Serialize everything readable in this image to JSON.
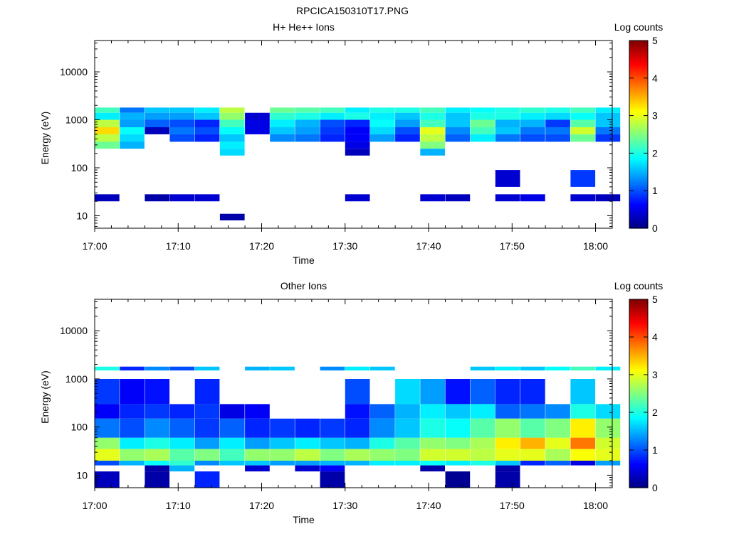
{
  "title": "RPCICA150310T17.PNG",
  "colors": {
    "colormap": [
      "#00007f",
      "#0000ff",
      "#0080ff",
      "#00ffff",
      "#80ff80",
      "#ffff00",
      "#ff8000",
      "#ff0000",
      "#7f0000"
    ]
  },
  "chart_data": [
    {
      "type": "heatmap",
      "title": "H+ He++ Ions",
      "xlabel": "Time",
      "ylabel": "Energy (eV)",
      "colorbar_label": "Log counts",
      "colorbar_ticks": [
        "0",
        "1",
        "2",
        "3",
        "4",
        "5"
      ],
      "x_ticks": [
        "17:00",
        "17:10",
        "17:20",
        "17:30",
        "17:40",
        "17:50",
        "18:00"
      ],
      "y_ticks": [
        "10",
        "100",
        "1000",
        "10000"
      ],
      "xlim": [
        "17:00",
        "18:02"
      ],
      "ylim": [
        5.5,
        45000
      ],
      "yscale": "log",
      "zlim": [
        0,
        5
      ],
      "time_bins": [
        "17:00",
        "17:03",
        "17:06",
        "17:09",
        "17:12",
        "17:15",
        "17:18",
        "17:21",
        "17:24",
        "17:27",
        "17:30",
        "17:33",
        "17:36",
        "17:39",
        "17:42",
        "17:45",
        "17:48",
        "17:51",
        "17:54",
        "17:57",
        "18:00"
      ],
      "energy_bands": [
        {
          "e_low": 1400,
          "e_high": 1800,
          "counts": [
            2.2,
            1.2,
            1.6,
            1.6,
            1.8,
            2.8,
            null,
            2.4,
            2.3,
            2.2,
            1.8,
            2.0,
            2.0,
            2.2,
            1.8,
            1.9,
            2.0,
            2.1,
            2.0,
            2.2,
            1.8
          ]
        },
        {
          "e_low": 1000,
          "e_high": 1400,
          "counts": [
            1.8,
            1.5,
            1.4,
            1.4,
            1.6,
            2.6,
            0.4,
            2.1,
            2.0,
            1.8,
            2.0,
            1.8,
            1.6,
            2.0,
            1.6,
            2.0,
            2.0,
            1.8,
            1.7,
            1.9,
            1.6
          ]
        },
        {
          "e_low": 700,
          "e_high": 1000,
          "counts": [
            2.8,
            1.4,
            1.1,
            1.0,
            0.8,
            2.2,
            0.5,
            1.8,
            1.5,
            1.0,
            0.8,
            1.9,
            1.4,
            2.2,
            1.6,
            2.4,
            1.5,
            1.5,
            0.9,
            2.3,
            1.6
          ]
        },
        {
          "e_low": 500,
          "e_high": 700,
          "counts": [
            3.3,
            1.9,
            0.3,
            1.2,
            1.0,
            1.9,
            0.5,
            1.6,
            1.4,
            0.9,
            0.6,
            1.7,
            1.0,
            3.0,
            1.3,
            2.2,
            1.6,
            1.2,
            1.2,
            2.9,
            1.2
          ]
        },
        {
          "e_low": 350,
          "e_high": 500,
          "counts": [
            2.8,
            1.7,
            null,
            1.0,
            0.8,
            1.6,
            null,
            1.3,
            1.2,
            0.8,
            0.6,
            1.4,
            0.8,
            2.8,
            1.1,
            1.8,
            1.2,
            1.0,
            1.0,
            2.4,
            0.9
          ]
        },
        {
          "e_low": 250,
          "e_high": 350,
          "counts": [
            2.4,
            1.5,
            null,
            null,
            null,
            1.8,
            null,
            null,
            null,
            null,
            0.5,
            null,
            null,
            2.5,
            null,
            null,
            null,
            null,
            null,
            null,
            null
          ]
        },
        {
          "e_low": 180,
          "e_high": 250,
          "counts": [
            null,
            null,
            null,
            null,
            null,
            1.7,
            null,
            null,
            null,
            null,
            0.3,
            null,
            null,
            1.5,
            null,
            null,
            null,
            null,
            null,
            null,
            null
          ]
        },
        {
          "e_low": 40,
          "e_high": 90,
          "counts": [
            null,
            null,
            null,
            null,
            null,
            null,
            null,
            null,
            null,
            null,
            null,
            null,
            null,
            null,
            null,
            null,
            0.4,
            null,
            null,
            0.9,
            null
          ]
        },
        {
          "e_low": 20,
          "e_high": 28,
          "counts": [
            0.3,
            null,
            0.2,
            0.4,
            0.4,
            null,
            null,
            null,
            null,
            null,
            0.4,
            null,
            null,
            0.4,
            0.3,
            null,
            0.4,
            0.5,
            null,
            0.4,
            0.3
          ]
        },
        {
          "e_low": 8,
          "e_high": 11,
          "counts": [
            null,
            null,
            null,
            null,
            null,
            0.2,
            null,
            null,
            null,
            null,
            null,
            null,
            null,
            null,
            null,
            null,
            null,
            null,
            null,
            null,
            null
          ]
        }
      ]
    },
    {
      "type": "heatmap",
      "title": "Other Ions",
      "xlabel": "Time",
      "ylabel": "Energy (eV)",
      "colorbar_label": "Log counts",
      "colorbar_ticks": [
        "0",
        "1",
        "2",
        "3",
        "4",
        "5"
      ],
      "x_ticks": [
        "17:00",
        "17:10",
        "17:20",
        "17:30",
        "17:40",
        "17:50",
        "18:00"
      ],
      "y_ticks": [
        "10",
        "100",
        "1000",
        "10000"
      ],
      "xlim": [
        "17:00",
        "18:02"
      ],
      "ylim": [
        5.5,
        45000
      ],
      "yscale": "log",
      "zlim": [
        0,
        5
      ],
      "time_bins": [
        "17:00",
        "17:03",
        "17:06",
        "17:09",
        "17:12",
        "17:15",
        "17:18",
        "17:21",
        "17:24",
        "17:27",
        "17:30",
        "17:33",
        "17:36",
        "17:39",
        "17:42",
        "17:45",
        "17:48",
        "17:51",
        "17:54",
        "17:57",
        "18:00"
      ],
      "energy_bands": [
        {
          "e_low": 1500,
          "e_high": 1800,
          "counts": [
            2.0,
            0.8,
            1.3,
            1.0,
            1.6,
            null,
            1.5,
            1.6,
            null,
            1.3,
            1.8,
            1.6,
            null,
            null,
            null,
            1.6,
            1.8,
            1.6,
            1.9,
            2.2,
            1.8
          ]
        },
        {
          "e_low": 300,
          "e_high": 1000,
          "counts": [
            0.9,
            0.6,
            0.7,
            null,
            0.8,
            null,
            null,
            null,
            null,
            null,
            1.0,
            null,
            1.7,
            1.4,
            0.7,
            1.1,
            0.8,
            0.8,
            null,
            1.6,
            null
          ]
        },
        {
          "e_low": 150,
          "e_high": 300,
          "counts": [
            0.6,
            0.8,
            0.9,
            0.8,
            0.9,
            0.5,
            0.6,
            null,
            null,
            null,
            0.7,
            1.1,
            1.5,
            1.8,
            1.6,
            1.8,
            1.1,
            1.2,
            1.3,
            2.0,
            1.7
          ]
        },
        {
          "e_low": 60,
          "e_high": 150,
          "counts": [
            1.2,
            1.0,
            1.3,
            1.1,
            0.9,
            1.1,
            0.8,
            0.9,
            0.8,
            0.9,
            0.8,
            1.3,
            1.6,
            2.0,
            1.9,
            2.3,
            2.6,
            2.3,
            2.5,
            3.2,
            2.6
          ]
        },
        {
          "e_low": 35,
          "e_high": 60,
          "counts": [
            2.6,
            1.8,
            2.0,
            1.8,
            1.4,
            1.8,
            1.4,
            1.6,
            1.8,
            1.6,
            1.5,
            2.0,
            2.3,
            2.6,
            2.5,
            2.7,
            3.2,
            3.5,
            3.0,
            3.8,
            2.9
          ]
        },
        {
          "e_low": 20,
          "e_high": 35,
          "counts": [
            3.0,
            2.6,
            2.7,
            2.3,
            2.5,
            2.2,
            2.6,
            2.6,
            2.8,
            2.5,
            2.7,
            2.6,
            2.5,
            2.9,
            2.9,
            2.8,
            3.0,
            3.0,
            2.7,
            3.1,
            3.0
          ]
        },
        {
          "e_low": 16,
          "e_high": 20,
          "counts": [
            1.0,
            1.5,
            1.9,
            2.1,
            1.3,
            1.6,
            1.6,
            1.4,
            1.4,
            1.5,
            1.5,
            1.8,
            1.8,
            1.9,
            1.8,
            2.0,
            1.6,
            0.8,
            1.1,
            0.5,
            1.4
          ]
        },
        {
          "e_low": 12,
          "e_high": 16,
          "counts": [
            null,
            null,
            0.2,
            1.5,
            null,
            null,
            0.4,
            null,
            0.4,
            0.6,
            null,
            null,
            null,
            0.2,
            null,
            null,
            0.2,
            null,
            null,
            null,
            null
          ]
        },
        {
          "e_low": 5.5,
          "e_high": 12,
          "counts": [
            0.3,
            null,
            0.2,
            null,
            0.8,
            null,
            null,
            null,
            null,
            0.2,
            null,
            null,
            null,
            null,
            0.1,
            null,
            0.2,
            null,
            null,
            null,
            null
          ]
        }
      ]
    }
  ]
}
